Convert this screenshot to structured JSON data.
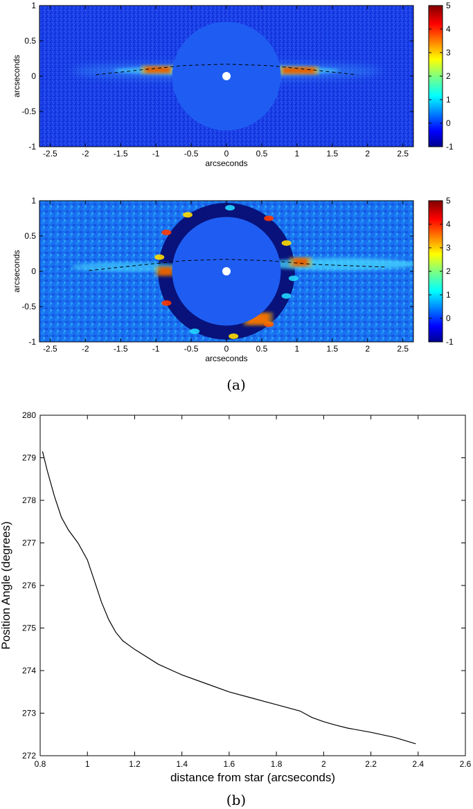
{
  "chart_data": [
    {
      "type": "heatmap",
      "title": "",
      "xlabel": "arcseconds",
      "ylabel": "arcseconds",
      "xlim": [
        -2.65,
        2.65
      ],
      "ylim": [
        -1,
        1
      ],
      "xticks": [
        -2.5,
        -2,
        -1.5,
        -1,
        -0.5,
        0,
        0.5,
        1,
        1.5,
        2,
        2.5
      ],
      "yticks": [
        -1,
        -0.5,
        0,
        0.5,
        1
      ],
      "colorbar": {
        "min": -1,
        "max": 5,
        "ticks": [
          -1,
          0,
          1,
          2,
          3,
          4,
          5
        ]
      },
      "colors": {
        "background": "#1a3fe6",
        "mask": "#1f5df2",
        "star": "#ffffff",
        "hot": "#cc0f00",
        "warm": "#ff8a00"
      },
      "mask_radius": 0.77,
      "star_position": [
        0,
        0
      ],
      "dashed_curve": {
        "x": [
          -1.85,
          -1.2,
          -0.6,
          0,
          0.6,
          1.2,
          1.85
        ],
        "y": [
          0.02,
          0.09,
          0.15,
          0.17,
          0.15,
          0.09,
          0.02
        ]
      },
      "disk_features": [
        {
          "x": [
            -1.15,
            -0.8
          ],
          "y": [
            0.05,
            0.13
          ],
          "intensity": 5
        },
        {
          "x": [
            0.8,
            1.25
          ],
          "y": [
            0.04,
            0.12
          ],
          "intensity": 5
        }
      ]
    },
    {
      "type": "heatmap",
      "title": "",
      "xlabel": "arcseconds",
      "ylabel": "arcseconds",
      "xlim": [
        -2.65,
        2.65
      ],
      "ylim": [
        -1,
        1
      ],
      "xticks": [
        -2.5,
        -2,
        -1.5,
        -1,
        -0.5,
        0,
        0.5,
        1,
        1.5,
        2,
        2.5
      ],
      "yticks": [
        -1,
        -0.5,
        0,
        0.5,
        1
      ],
      "colorbar": {
        "min": -1,
        "max": 5,
        "ticks": [
          -1,
          0,
          1,
          2,
          3,
          4,
          5
        ]
      },
      "colors": {
        "background": "#1a6ff0",
        "ring": "#08127a",
        "mask": "#1f5df2",
        "star": "#ffffff",
        "hot": "#cc0f00"
      },
      "mask_radius": 0.77,
      "ring_radius": 0.97,
      "star_position": [
        0,
        0
      ],
      "dashed_curve": {
        "x": [
          -1.95,
          -1.2,
          -0.6,
          0,
          0.6,
          1.2,
          2.25
        ],
        "y": [
          0.01,
          0.09,
          0.15,
          0.17,
          0.15,
          0.1,
          0.06
        ]
      },
      "disk_features": [
        {
          "x": [
            -0.95,
            -0.78
          ],
          "y": [
            -0.05,
            0.05
          ],
          "intensity": 5
        },
        {
          "x": [
            0.95,
            1.15
          ],
          "y": [
            0.08,
            0.18
          ],
          "intensity": 5
        },
        {
          "x": [
            0.3,
            0.6
          ],
          "y": [
            -0.75,
            -0.6
          ],
          "intensity": 4
        }
      ]
    },
    {
      "type": "line",
      "title": "",
      "xlabel": "distance from star (arcseconds)",
      "ylabel": "Position Angle (degrees)",
      "xlim": [
        0.8,
        2.6
      ],
      "ylim": [
        272,
        280
      ],
      "xticks": [
        0.8,
        1,
        1.2,
        1.4,
        1.6,
        1.8,
        2,
        2.2,
        2.4,
        2.6
      ],
      "yticks": [
        272,
        273,
        274,
        275,
        276,
        277,
        278,
        279,
        280
      ],
      "grid": false,
      "series": [
        {
          "x": [
            0.81,
            0.83,
            0.86,
            0.89,
            0.92,
            0.96,
            1.0,
            1.03,
            1.06,
            1.09,
            1.12,
            1.15,
            1.2,
            1.3,
            1.4,
            1.5,
            1.6,
            1.7,
            1.8,
            1.9,
            1.95,
            2.0,
            2.05,
            2.1,
            2.2,
            2.3,
            2.39
          ],
          "values": [
            279.15,
            278.7,
            278.1,
            277.6,
            277.3,
            277.0,
            276.6,
            276.1,
            275.6,
            275.2,
            274.9,
            274.7,
            274.5,
            274.15,
            273.9,
            273.7,
            273.5,
            273.35,
            273.2,
            273.05,
            272.9,
            272.8,
            272.72,
            272.65,
            272.55,
            272.43,
            272.28
          ]
        }
      ]
    }
  ],
  "panel_labels": [
    "(a)",
    "(b)"
  ]
}
